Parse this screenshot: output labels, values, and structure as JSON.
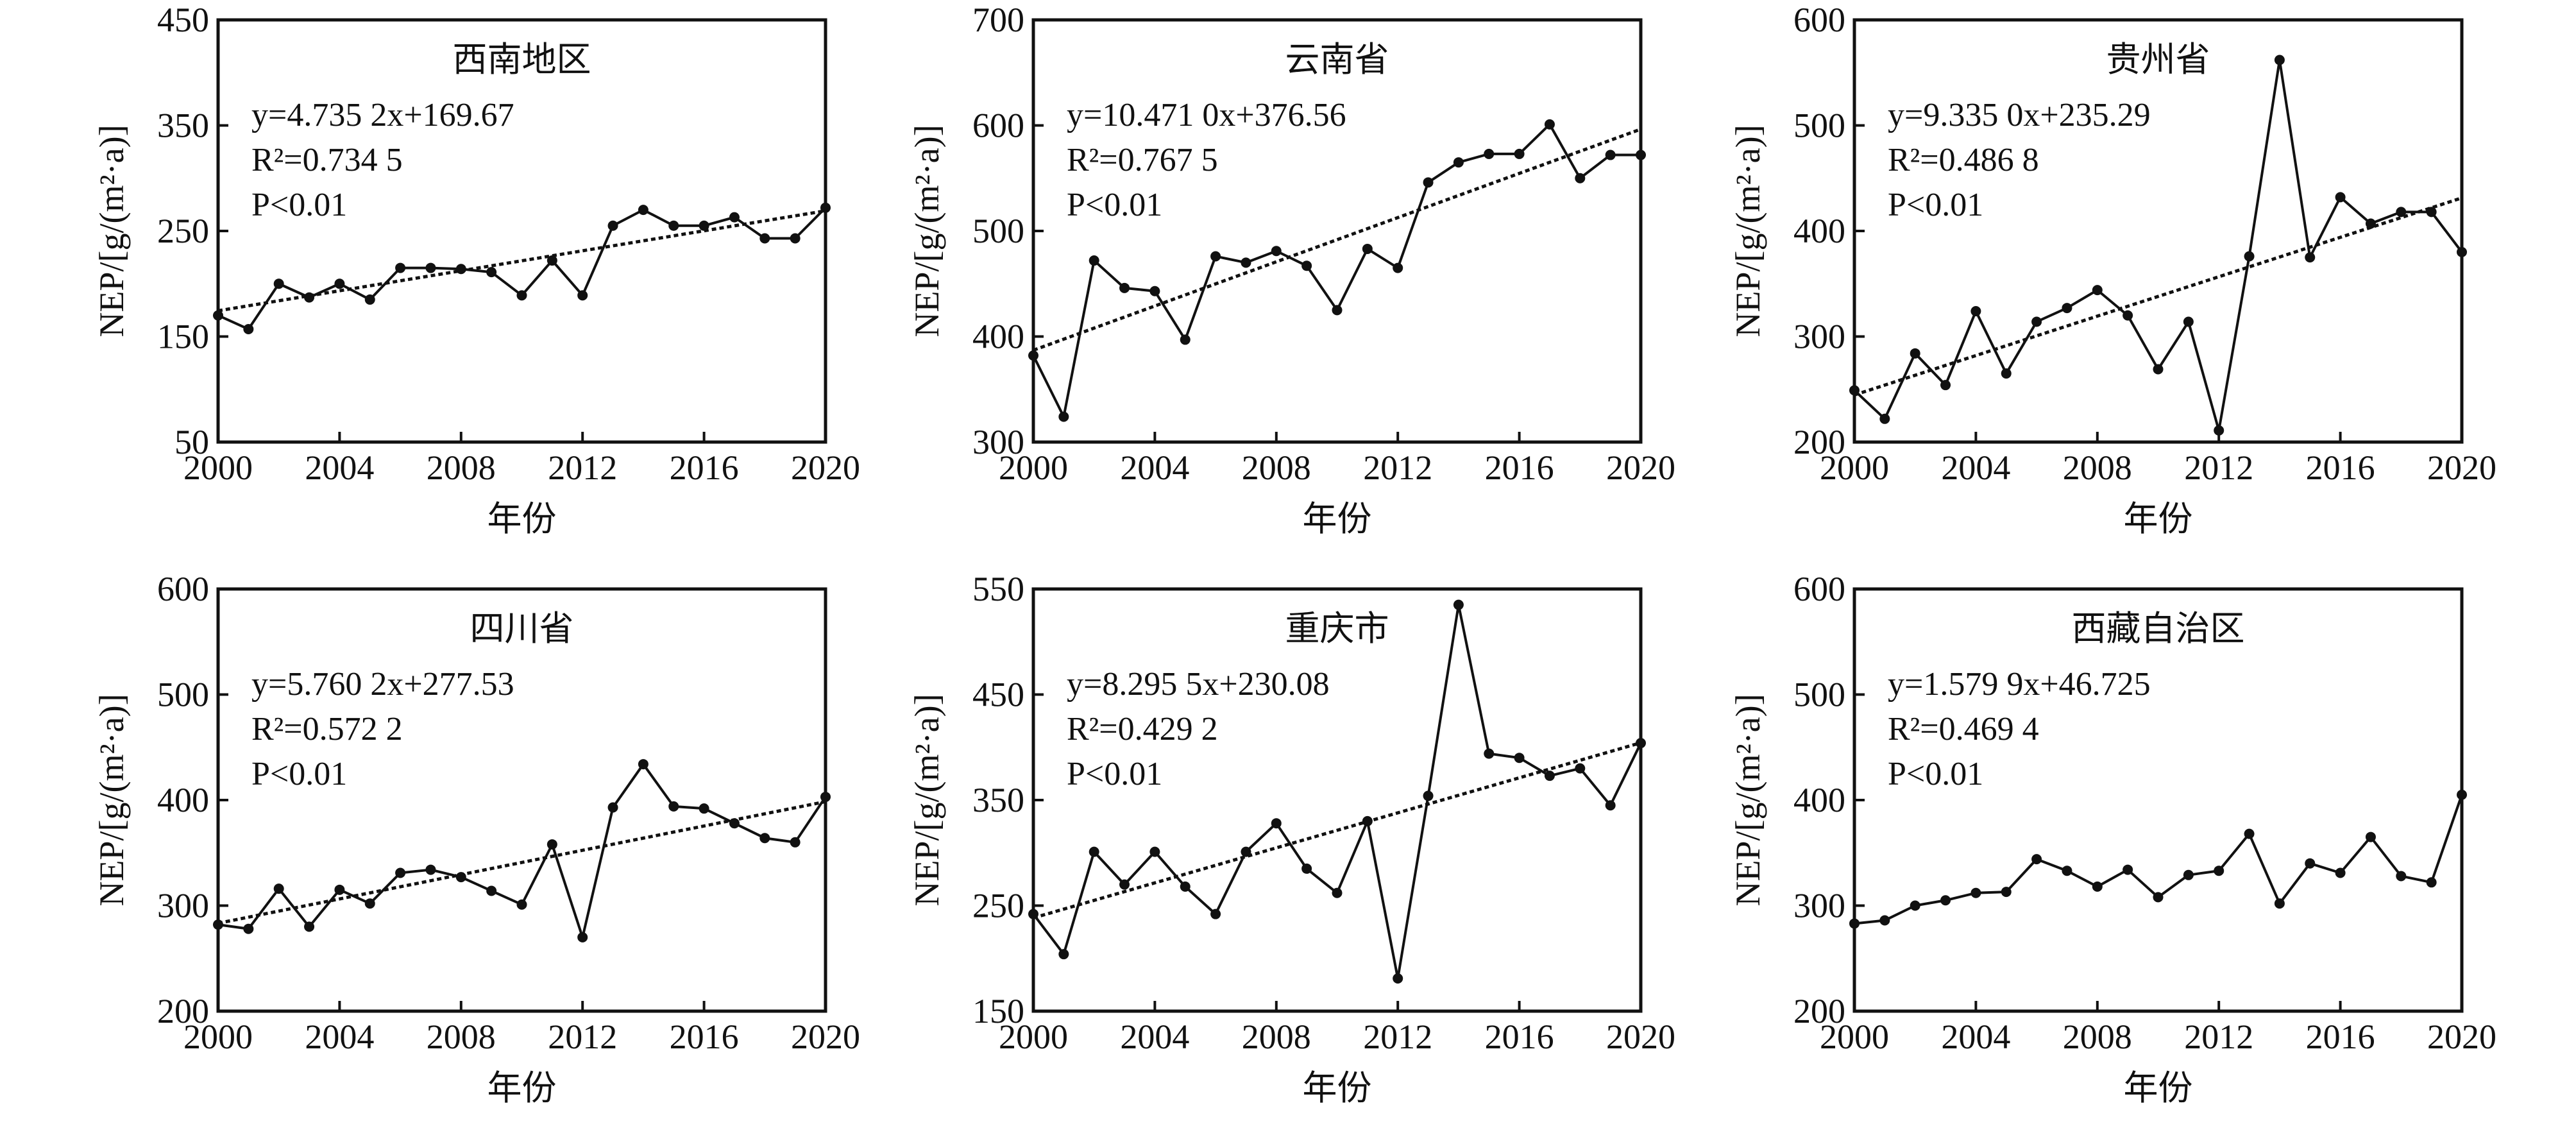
{
  "chart_data": [
    {
      "type": "line",
      "title": "西南地区",
      "xlabel": "年份",
      "ylabel": "NEP/[g/(m²·a)]",
      "xlim": [
        2000,
        2020
      ],
      "ylim": [
        50,
        450
      ],
      "xticks": [
        2000,
        2004,
        2008,
        2012,
        2016,
        2020
      ],
      "yticks": [
        50,
        150,
        250,
        350,
        450
      ],
      "equation": "y=4.735 2x+169.67",
      "r2": "R²=0.734 5",
      "p": "P<0.01",
      "trend": {
        "slope": 4.7352,
        "intercept": 169.67
      },
      "x": [
        2000,
        2001,
        2002,
        2003,
        2004,
        2005,
        2006,
        2007,
        2008,
        2009,
        2010,
        2011,
        2012,
        2013,
        2014,
        2015,
        2016,
        2017,
        2018,
        2019,
        2020
      ],
      "values": [
        170,
        157,
        200,
        187,
        200,
        185,
        215,
        215,
        214,
        211,
        189,
        222,
        189,
        255,
        270,
        255,
        255,
        263,
        243,
        243,
        272
      ]
    },
    {
      "type": "line",
      "title": "云南省",
      "xlabel": "年份",
      "ylabel": "NEP/[g/(m²·a)]",
      "xlim": [
        2000,
        2020
      ],
      "ylim": [
        300,
        700
      ],
      "xticks": [
        2000,
        2004,
        2008,
        2012,
        2016,
        2020
      ],
      "yticks": [
        300,
        400,
        500,
        600,
        700
      ],
      "equation": "y=10.471 0x+376.56",
      "r2": "R²=0.767 5",
      "p": "P<0.01",
      "trend": {
        "slope": 10.471,
        "intercept": 376.56
      },
      "x": [
        2000,
        2001,
        2002,
        2003,
        2004,
        2005,
        2006,
        2007,
        2008,
        2009,
        2010,
        2011,
        2012,
        2013,
        2014,
        2015,
        2016,
        2017,
        2018,
        2019,
        2020
      ],
      "values": [
        382,
        324,
        472,
        446,
        443,
        397,
        476,
        470,
        481,
        467,
        425,
        483,
        465,
        546,
        565,
        573,
        573,
        601,
        550,
        572,
        572
      ]
    },
    {
      "type": "line",
      "title": "贵州省",
      "xlabel": "年份",
      "ylabel": "NEP/[g/(m²·a)]",
      "xlim": [
        2000,
        2020
      ],
      "ylim": [
        200,
        600
      ],
      "xticks": [
        2000,
        2004,
        2008,
        2012,
        2016,
        2020
      ],
      "yticks": [
        200,
        300,
        400,
        500,
        600
      ],
      "equation": "y=9.335 0x+235.29",
      "r2": "R²=0.486 8",
      "p": "P<0.01",
      "trend": {
        "slope": 9.335,
        "intercept": 235.29
      },
      "x": [
        2000,
        2001,
        2002,
        2003,
        2004,
        2005,
        2006,
        2007,
        2008,
        2009,
        2010,
        2011,
        2012,
        2013,
        2014,
        2015,
        2016,
        2017,
        2018,
        2019,
        2020
      ],
      "values": [
        249,
        222,
        284,
        254,
        324,
        265,
        314,
        327,
        344,
        320,
        269,
        314,
        211,
        376,
        562,
        375,
        432,
        407,
        418,
        418,
        380
      ]
    },
    {
      "type": "line",
      "title": "四川省",
      "xlabel": "年份",
      "ylabel": "NEP/[g/(m²·a)]",
      "xlim": [
        2000,
        2020
      ],
      "ylim": [
        200,
        600
      ],
      "xticks": [
        2000,
        2004,
        2008,
        2012,
        2016,
        2020
      ],
      "yticks": [
        200,
        300,
        400,
        500,
        600
      ],
      "equation": "y=5.760 2x+277.53",
      "r2": "R²=0.572 2",
      "p": "P<0.01",
      "trend": {
        "slope": 5.7602,
        "intercept": 277.53
      },
      "x": [
        2000,
        2001,
        2002,
        2003,
        2004,
        2005,
        2006,
        2007,
        2008,
        2009,
        2010,
        2011,
        2012,
        2013,
        2014,
        2015,
        2016,
        2017,
        2018,
        2019,
        2020
      ],
      "values": [
        282,
        278,
        316,
        280,
        315,
        302,
        331,
        334,
        327,
        314,
        301,
        358,
        270,
        393,
        434,
        394,
        392,
        378,
        364,
        360,
        403
      ]
    },
    {
      "type": "line",
      "title": "重庆市",
      "xlabel": "年份",
      "ylabel": "NEP/[g/(m²·a)]",
      "xlim": [
        2000,
        2020
      ],
      "ylim": [
        150,
        550
      ],
      "xticks": [
        2000,
        2004,
        2008,
        2012,
        2016,
        2020
      ],
      "yticks": [
        150,
        250,
        350,
        450,
        550
      ],
      "equation": "y=8.295 5x+230.08",
      "r2": "R²=0.429 2",
      "p": "P<0.01",
      "trend": {
        "slope": 8.2955,
        "intercept": 230.08
      },
      "x": [
        2000,
        2001,
        2002,
        2003,
        2004,
        2005,
        2006,
        2007,
        2008,
        2009,
        2010,
        2011,
        2012,
        2013,
        2014,
        2015,
        2016,
        2017,
        2018,
        2019,
        2020
      ],
      "values": [
        242,
        204,
        301,
        270,
        301,
        268,
        242,
        301,
        328,
        285,
        262,
        330,
        181,
        354,
        535,
        394,
        390,
        373,
        380,
        345,
        404
      ]
    },
    {
      "type": "line",
      "title": "西藏自治区",
      "xlabel": "年份",
      "ylabel": "NEP/[g/(m²·a)]",
      "xlim": [
        2000,
        2020
      ],
      "ylim": [
        200,
        600
      ],
      "xticks": [
        2000,
        2004,
        2008,
        2012,
        2016,
        2020
      ],
      "yticks": [
        200,
        300,
        400,
        500,
        600
      ],
      "equation": "y=1.579 9x+46.725",
      "r2": "R²=0.469 4",
      "p": "P<0.01",
      "trend": {
        "slope": 1.5799,
        "intercept": 46.725
      },
      "x": [
        2000,
        2001,
        2002,
        2003,
        2004,
        2005,
        2006,
        2007,
        2008,
        2009,
        2010,
        2011,
        2012,
        2013,
        2014,
        2015,
        2016,
        2017,
        2018,
        2019,
        2020
      ],
      "values": [
        283,
        286,
        300,
        305,
        312,
        313,
        344,
        333,
        318,
        334,
        308,
        329,
        333,
        368,
        302,
        340,
        331,
        365,
        328,
        322,
        405
      ]
    }
  ],
  "colors": {
    "line": "#111111",
    "trend": "#111111",
    "background": "#ffffff"
  }
}
